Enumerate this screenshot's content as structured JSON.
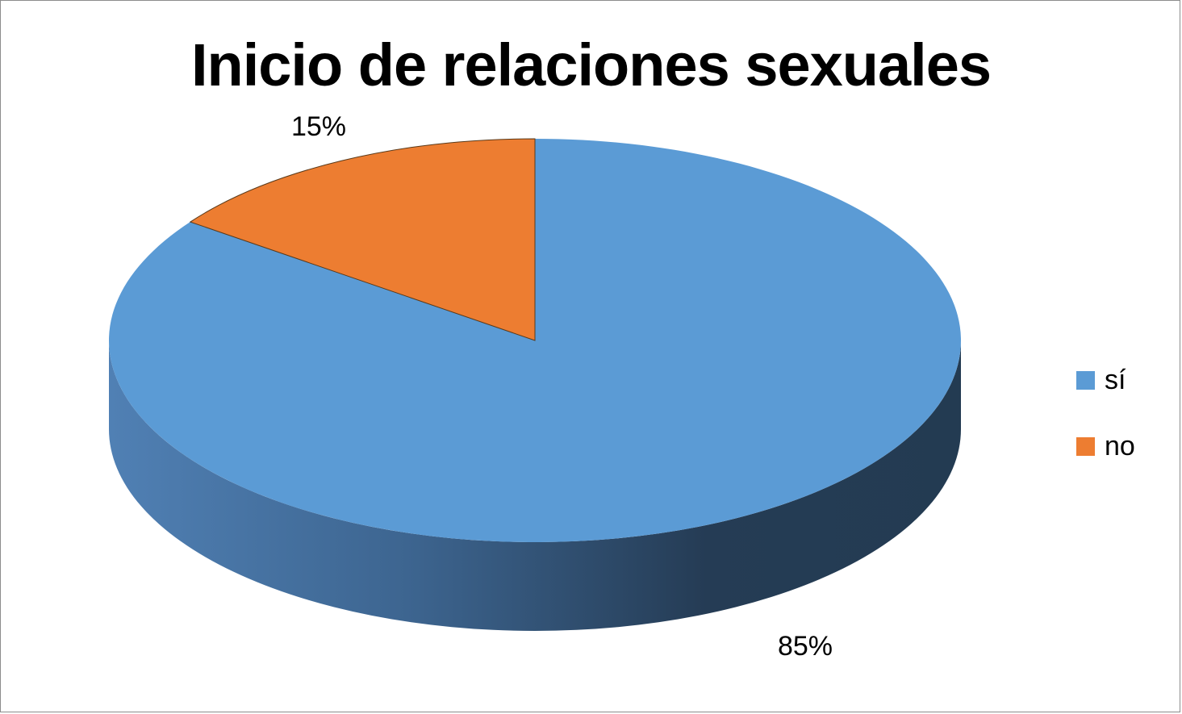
{
  "chart_data": {
    "type": "pie",
    "title": "Inicio de relaciones sexuales",
    "categories": [
      "sí",
      "no"
    ],
    "values": [
      85,
      15
    ],
    "data_labels": [
      "85%",
      "15%"
    ],
    "colors": [
      "#5b9bd5",
      "#ed7d31"
    ],
    "legend": "right",
    "style": "3d"
  }
}
